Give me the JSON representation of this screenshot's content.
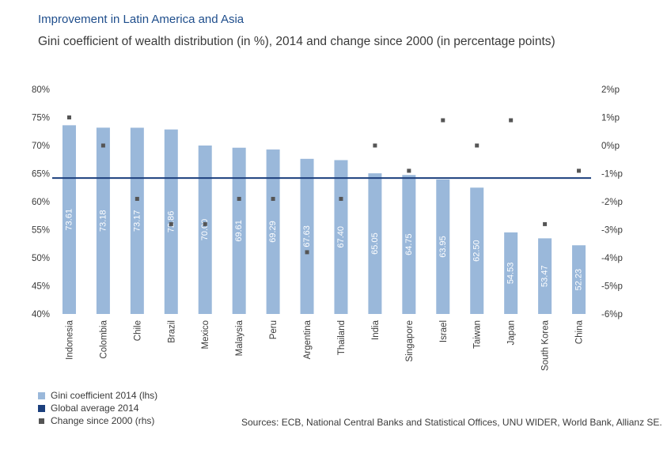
{
  "title": "Improvement in Latin America and Asia",
  "subtitle": "Gini coefficient of wealth distribution (in %), 2014 and change since 2000 (in percentage points)",
  "legend": {
    "bars": "Gini coefficient 2014 (lhs)",
    "avg": "Global average 2014",
    "change": "Change since 2000 (rhs)"
  },
  "source": "Sources: ECB, National Central Banks and Statistical Offices, UNU WIDER, World Bank, Allianz SE.",
  "colors": {
    "bar": "#9ab8da",
    "avg": "#1b3f7d",
    "marker": "#555555",
    "bar_label": "#ffffff"
  },
  "chart_data": {
    "type": "bar",
    "categories": [
      "Indonesia",
      "Colombia",
      "Chile",
      "Brazil",
      "Mexico",
      "Malaysia",
      "Peru",
      "Argentina",
      "Thailand",
      "India",
      "Singapore",
      "Israel",
      "Taiwan",
      "Japan",
      "South Korea",
      "China"
    ],
    "series": [
      {
        "name": "Gini coefficient 2014 (lhs)",
        "axis": "left",
        "values": [
          73.61,
          73.18,
          73.17,
          72.86,
          70.0,
          69.61,
          69.29,
          67.63,
          67.4,
          65.05,
          64.75,
          63.95,
          62.5,
          54.53,
          53.47,
          52.23
        ],
        "labels": [
          "73.61",
          "73.18",
          "73.17",
          "72.86",
          "70.00",
          "69.61",
          "69.29",
          "67.63",
          "67.40",
          "65.05",
          "64.75",
          "63.95",
          "62.50",
          "54.53",
          "53.47",
          "52.23"
        ]
      },
      {
        "name": "Change since 2000 (rhs)",
        "axis": "right",
        "type": "scatter",
        "values": [
          1.0,
          0.0,
          -1.9,
          -2.8,
          -2.8,
          -1.9,
          -1.9,
          -3.8,
          -1.9,
          0.0,
          -0.9,
          0.9,
          0.0,
          0.9,
          -2.8,
          -0.9
        ]
      }
    ],
    "reference_line": {
      "name": "Global average 2014",
      "value": 64.2
    },
    "y_left": {
      "ylim": [
        40,
        80
      ],
      "ticks": [
        "40%",
        "45%",
        "50%",
        "55%",
        "60%",
        "65%",
        "70%",
        "75%",
        "80%"
      ],
      "tick_values": [
        40,
        45,
        50,
        55,
        60,
        65,
        70,
        75,
        80
      ]
    },
    "y_right": {
      "ylim": [
        -6,
        2
      ],
      "ticks": [
        "-6%p",
        "-5%p",
        "-4%p",
        "-3%p",
        "-2%p",
        "-1%p",
        "0%p",
        "1%p",
        "2%p"
      ],
      "tick_values": [
        -6,
        -5,
        -4,
        -3,
        -2,
        -1,
        0,
        1,
        2
      ]
    },
    "grid": false,
    "legend_position": "bottom-left"
  }
}
